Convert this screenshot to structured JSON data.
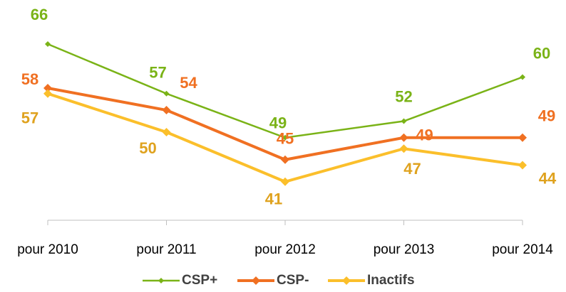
{
  "chart_data": {
    "type": "line",
    "categories": [
      "pour 2010",
      "pour 2011",
      "pour 2012",
      "pour 2013",
      "pour 2014"
    ],
    "series": [
      {
        "name": "CSP+",
        "color": "#7ab317",
        "label_color": "#7ab317",
        "values": [
          66,
          57,
          49,
          52,
          60
        ]
      },
      {
        "name": "CSP-",
        "color": "#f07022",
        "label_color": "#f07022",
        "values": [
          58,
          54,
          45,
          49,
          49
        ]
      },
      {
        "name": "Inactifs",
        "color": "#fbbf2b",
        "label_color": "#dfa21e",
        "values": [
          57,
          50,
          41,
          47,
          44
        ]
      }
    ],
    "ylim": [
      34,
      70
    ],
    "legend": "bottom"
  }
}
